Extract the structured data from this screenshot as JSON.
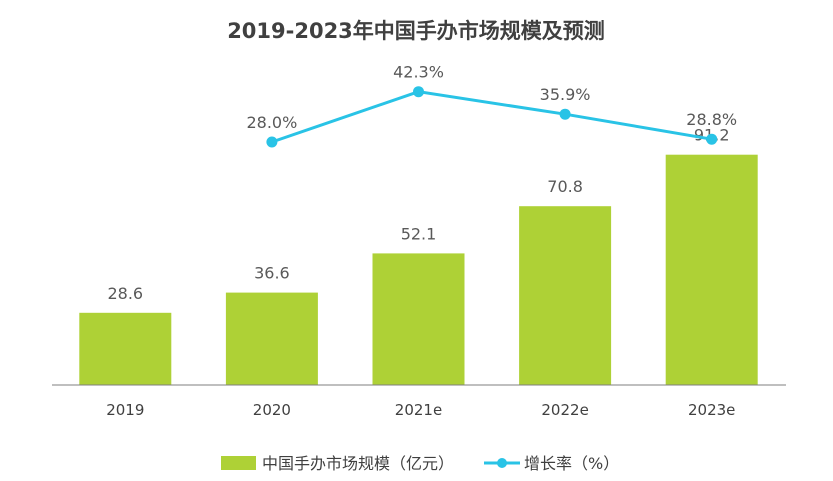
{
  "chart_data": {
    "type": "bar",
    "title": "2019-2023年中国手办市场规模及预测",
    "categories": [
      "2019",
      "2020",
      "2021e",
      "2022e",
      "2023e"
    ],
    "series": [
      {
        "name": "中国手办市场规模（亿元）",
        "type": "bar",
        "values": [
          28.6,
          36.6,
          52.1,
          70.8,
          91.2
        ],
        "labels": [
          "28.6",
          "36.6",
          "52.1",
          "70.8",
          "91.2"
        ]
      },
      {
        "name": "增长率（%）",
        "type": "line",
        "values": [
          null,
          28.0,
          42.3,
          35.9,
          28.8
        ],
        "labels": [
          "",
          "28.0%",
          "42.3%",
          "35.9%",
          "28.8%"
        ]
      }
    ],
    "grid": false,
    "legend_position": "bottom",
    "colors": {
      "bar": "#AED136",
      "line": "#29C3E6",
      "axis": "#7F7F7F"
    }
  }
}
